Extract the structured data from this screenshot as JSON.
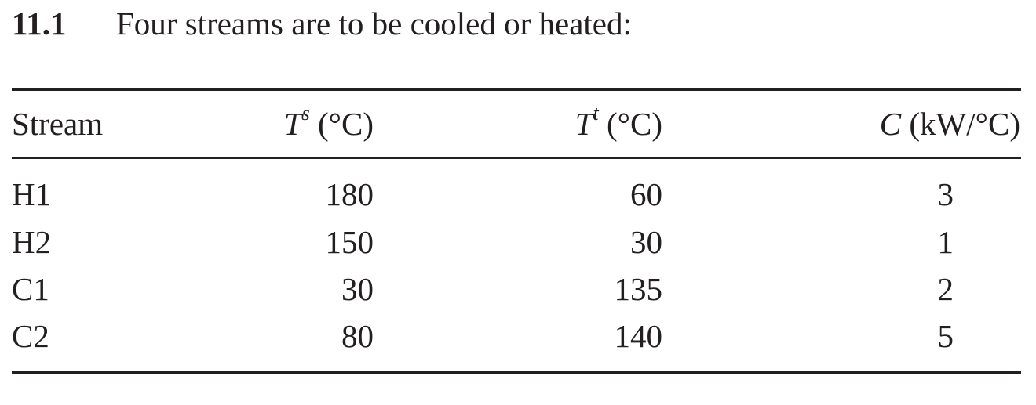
{
  "problem": {
    "number": "11.1",
    "statement": "Four streams are to be cooled or heated:"
  },
  "table": {
    "headers": {
      "stream": "Stream",
      "ts_symbol": "T",
      "ts_sup": "s",
      "ts_unit": " (°C)",
      "tt_symbol": "T",
      "tt_sup": "t",
      "tt_unit": " (°C)",
      "c_symbol": "C",
      "c_unit": " (kW/°C)"
    },
    "rows": [
      {
        "stream": "H1",
        "ts": "180",
        "tt": "60",
        "c": "3"
      },
      {
        "stream": "H2",
        "ts": "150",
        "tt": "30",
        "c": "1"
      },
      {
        "stream": "C1",
        "ts": "30",
        "tt": "135",
        "c": "2"
      },
      {
        "stream": "C2",
        "ts": "80",
        "tt": "140",
        "c": "5"
      }
    ]
  }
}
